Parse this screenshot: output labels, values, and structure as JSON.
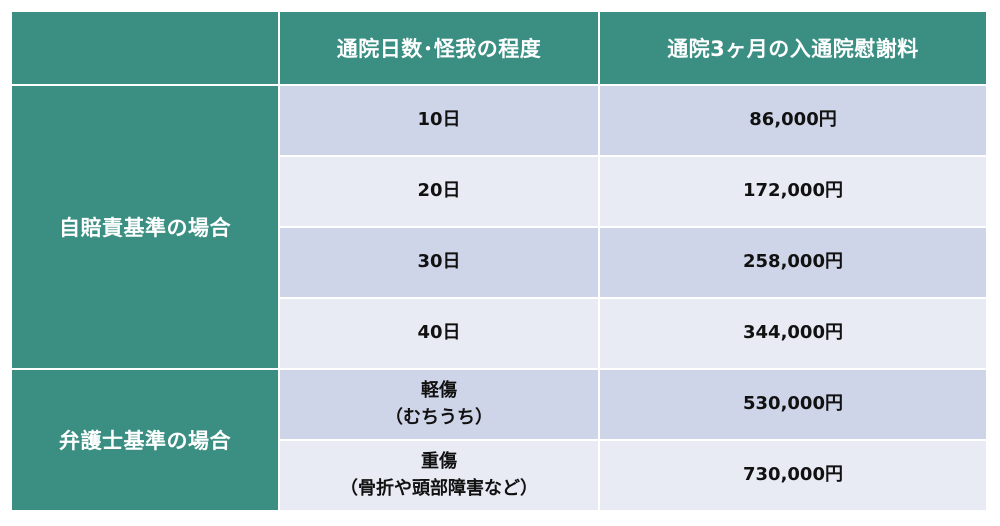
{
  "header": {
    "corner": "",
    "col_days": "通院日数･怪我の程度",
    "col_amount": "通院3ヶ月の入通院慰謝料"
  },
  "groups": [
    {
      "label": "自賠責基準の場合",
      "rows": [
        {
          "condition": "10日",
          "amount": "86,000円"
        },
        {
          "condition": "20日",
          "amount": "172,000円"
        },
        {
          "condition": "30日",
          "amount": "258,000円"
        },
        {
          "condition": "40日",
          "amount": "344,000円"
        }
      ]
    },
    {
      "label": "弁護士基準の場合",
      "rows": [
        {
          "condition": "軽傷",
          "condition_note": "（むちうち）",
          "amount": "530,000円"
        },
        {
          "condition": "重傷",
          "condition_note": "（骨折や頭部障害など）",
          "amount": "730,000円"
        }
      ]
    }
  ],
  "colors": {
    "header_bg": "#3a8f82",
    "row_dark": "#cfd5e8",
    "row_light": "#e8ebf4"
  }
}
